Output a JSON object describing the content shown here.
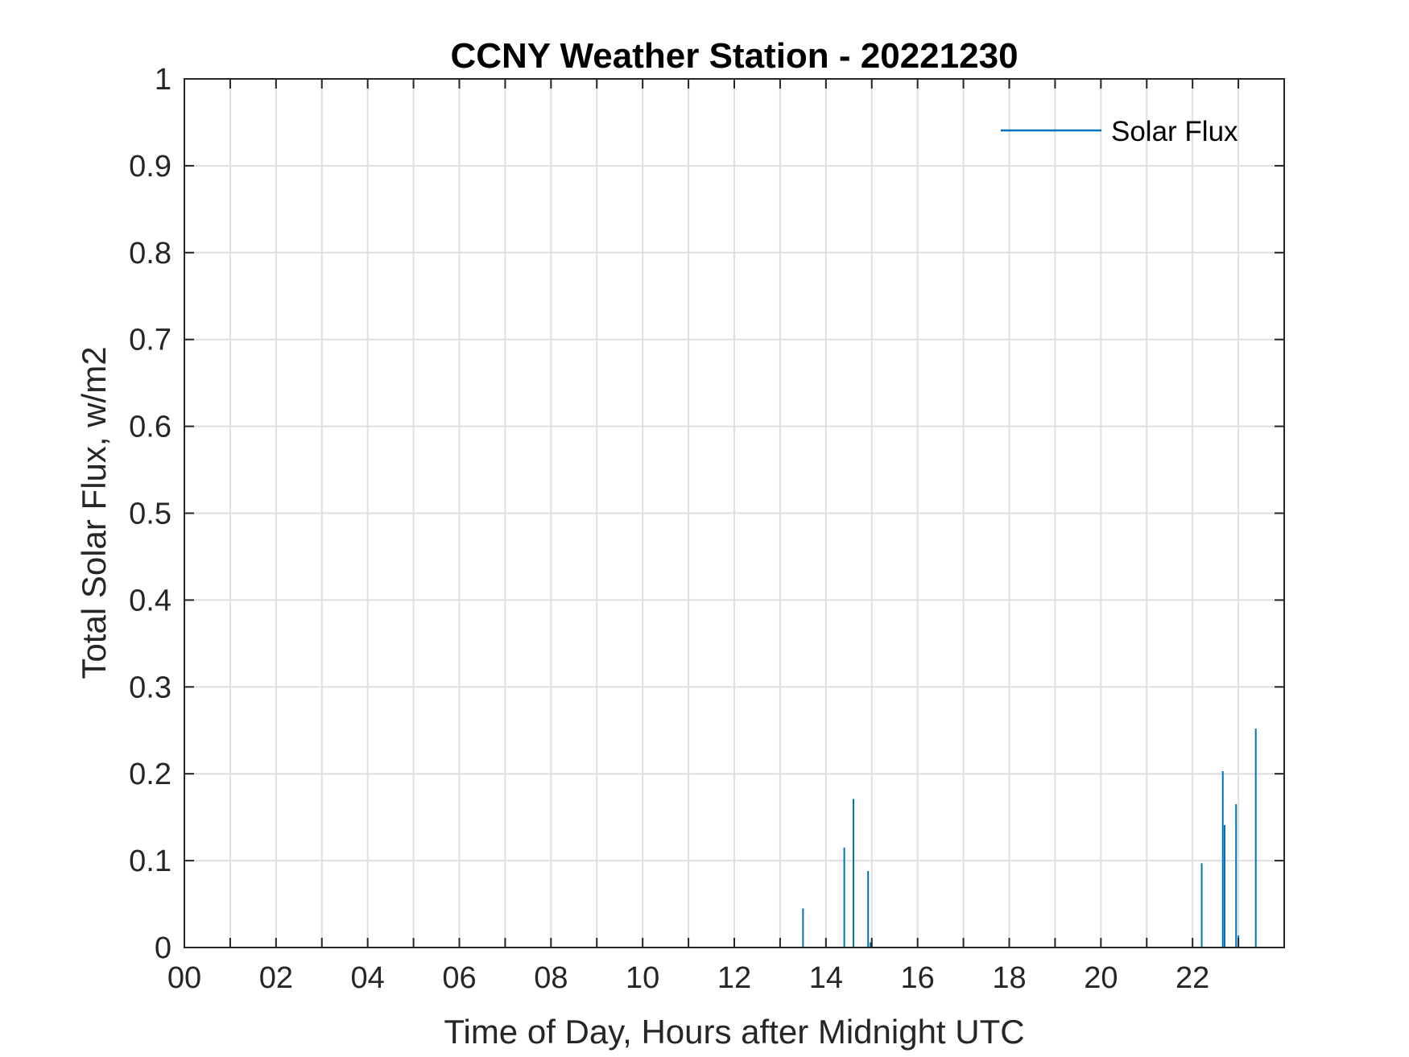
{
  "chart_data": {
    "type": "line",
    "title": "CCNY Weather Station - 20221230",
    "xlabel": "Time of Day, Hours after Midnight UTC",
    "ylabel": "Total Solar Flux, w/m2",
    "xlim": [
      0,
      24
    ],
    "ylim": [
      0,
      1
    ],
    "xticks": [
      0,
      2,
      4,
      6,
      8,
      10,
      12,
      14,
      16,
      18,
      20,
      22
    ],
    "xtick_labels": [
      "00",
      "02",
      "04",
      "06",
      "08",
      "10",
      "12",
      "14",
      "16",
      "18",
      "20",
      "22"
    ],
    "xgrid_step": 1,
    "yticks": [
      0,
      0.1,
      0.2,
      0.3,
      0.4,
      0.5,
      0.6,
      0.7,
      0.8,
      0.9,
      1
    ],
    "ytick_labels": [
      "0",
      "0.1",
      "0.2",
      "0.3",
      "0.4",
      "0.5",
      "0.6",
      "0.7",
      "0.8",
      "0.9",
      "1"
    ],
    "grid": true,
    "legend": {
      "position": "top-right"
    },
    "series": [
      {
        "name": "Solar Flux",
        "color": "#0072BD",
        "spikes": [
          {
            "x": 13.5,
            "y": 0.045
          },
          {
            "x": 14.4,
            "y": 0.115
          },
          {
            "x": 14.6,
            "y": 0.171
          },
          {
            "x": 14.92,
            "y": 0.088
          },
          {
            "x": 14.97,
            "y": 0.006
          },
          {
            "x": 22.2,
            "y": 0.097
          },
          {
            "x": 22.66,
            "y": 0.203
          },
          {
            "x": 22.7,
            "y": 0.141
          },
          {
            "x": 22.95,
            "y": 0.165
          },
          {
            "x": 23.0,
            "y": 0.014
          },
          {
            "x": 23.38,
            "y": 0.252
          }
        ]
      }
    ]
  }
}
